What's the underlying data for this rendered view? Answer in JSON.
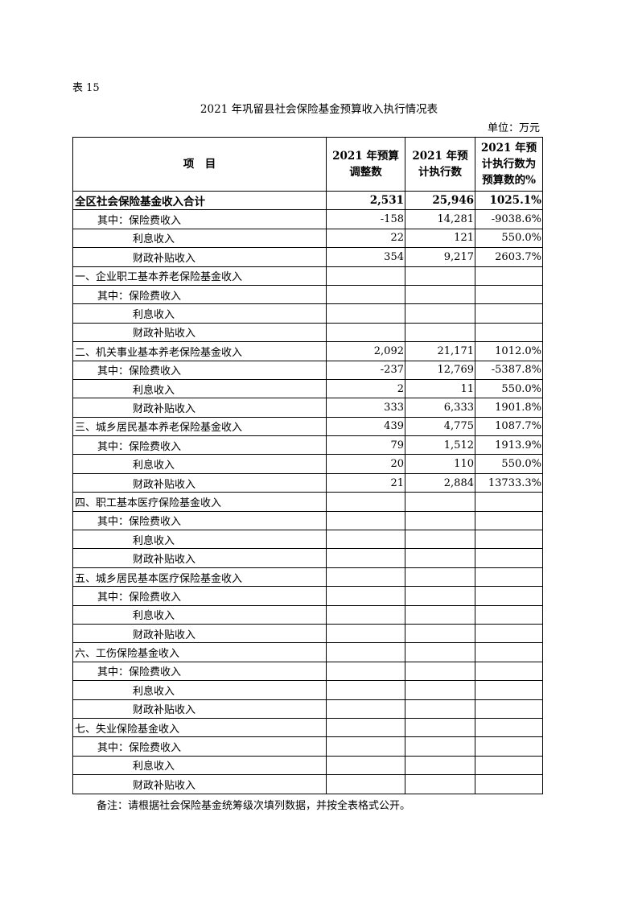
{
  "table_label": "表 15",
  "title": "2021 年巩留县社会保险基金预算收入执行情况表",
  "unit": "单位：万元",
  "headers": [
    "项　目",
    "2021 年预算调整数",
    "2021 年预计执行数",
    "2021 年预计执行数为预算数的%"
  ],
  "rows": [
    {
      "label": "全区社会保险基金收入合计",
      "indent": 0,
      "bold": true,
      "values": [
        "2,531",
        "25,946",
        "1025.1%"
      ]
    },
    {
      "label": "其中：保险费收入",
      "indent": 1,
      "values": [
        "-158",
        "14,281",
        "-9038.6%"
      ]
    },
    {
      "label": "利息收入",
      "indent": 2,
      "values": [
        "22",
        "121",
        "550.0%"
      ]
    },
    {
      "label": "财政补贴收入",
      "indent": 2,
      "values": [
        "354",
        "9,217",
        "2603.7%"
      ]
    },
    {
      "label": "一、企业职工基本养老保险基金收入",
      "indent": 0,
      "values": [
        "",
        "",
        ""
      ]
    },
    {
      "label": "其中：保险费收入",
      "indent": 1,
      "values": [
        "",
        "",
        ""
      ]
    },
    {
      "label": "利息收入",
      "indent": 2,
      "values": [
        "",
        "",
        ""
      ]
    },
    {
      "label": "财政补贴收入",
      "indent": 2,
      "values": [
        "",
        "",
        ""
      ]
    },
    {
      "label": "二、机关事业基本养老保险基金收入",
      "indent": 0,
      "values": [
        "2,092",
        "21,171",
        "1012.0%"
      ]
    },
    {
      "label": "其中：保险费收入",
      "indent": 1,
      "values": [
        "-237",
        "12,769",
        "-5387.8%"
      ]
    },
    {
      "label": "利息收入",
      "indent": 2,
      "values": [
        "2",
        "11",
        "550.0%"
      ]
    },
    {
      "label": "财政补贴收入",
      "indent": 2,
      "values": [
        "333",
        "6,333",
        "1901.8%"
      ]
    },
    {
      "label": "三、城乡居民基本养老保险基金收入",
      "indent": 0,
      "values": [
        "439",
        "4,775",
        "1087.7%"
      ]
    },
    {
      "label": "其中：保险费收入",
      "indent": 1,
      "values": [
        "79",
        "1,512",
        "1913.9%"
      ]
    },
    {
      "label": "利息收入",
      "indent": 2,
      "values": [
        "20",
        "110",
        "550.0%"
      ]
    },
    {
      "label": "财政补贴收入",
      "indent": 2,
      "values": [
        "21",
        "2,884",
        "13733.3%"
      ]
    },
    {
      "label": "四、职工基本医疗保险基金收入",
      "indent": 0,
      "values": [
        "",
        "",
        ""
      ]
    },
    {
      "label": "其中：保险费收入",
      "indent": 1,
      "values": [
        "",
        "",
        ""
      ]
    },
    {
      "label": "利息收入",
      "indent": 2,
      "values": [
        "",
        "",
        ""
      ]
    },
    {
      "label": "财政补贴收入",
      "indent": 2,
      "values": [
        "",
        "",
        ""
      ]
    },
    {
      "label": "五、城乡居民基本医疗保险基金收入",
      "indent": 0,
      "values": [
        "",
        "",
        ""
      ]
    },
    {
      "label": "其中：保险费收入",
      "indent": 1,
      "values": [
        "",
        "",
        ""
      ]
    },
    {
      "label": "利息收入",
      "indent": 2,
      "values": [
        "",
        "",
        ""
      ]
    },
    {
      "label": "财政补贴收入",
      "indent": 2,
      "values": [
        "",
        "",
        ""
      ]
    },
    {
      "label": "六、工伤保险基金收入",
      "indent": 0,
      "values": [
        "",
        "",
        ""
      ]
    },
    {
      "label": "其中：保险费收入",
      "indent": 1,
      "values": [
        "",
        "",
        ""
      ]
    },
    {
      "label": "利息收入",
      "indent": 2,
      "values": [
        "",
        "",
        ""
      ]
    },
    {
      "label": "财政补贴收入",
      "indent": 2,
      "values": [
        "",
        "",
        ""
      ]
    },
    {
      "label": "七、失业保险基金收入",
      "indent": 0,
      "values": [
        "",
        "",
        ""
      ]
    },
    {
      "label": "其中：保险费收入",
      "indent": 1,
      "values": [
        "",
        "",
        ""
      ]
    },
    {
      "label": "利息收入",
      "indent": 2,
      "values": [
        "",
        "",
        ""
      ]
    },
    {
      "label": "财政补贴收入",
      "indent": 2,
      "values": [
        "",
        "",
        ""
      ]
    }
  ],
  "note": "备注：请根据社会保险基金统筹级次填列数据，并按全表格式公开。"
}
